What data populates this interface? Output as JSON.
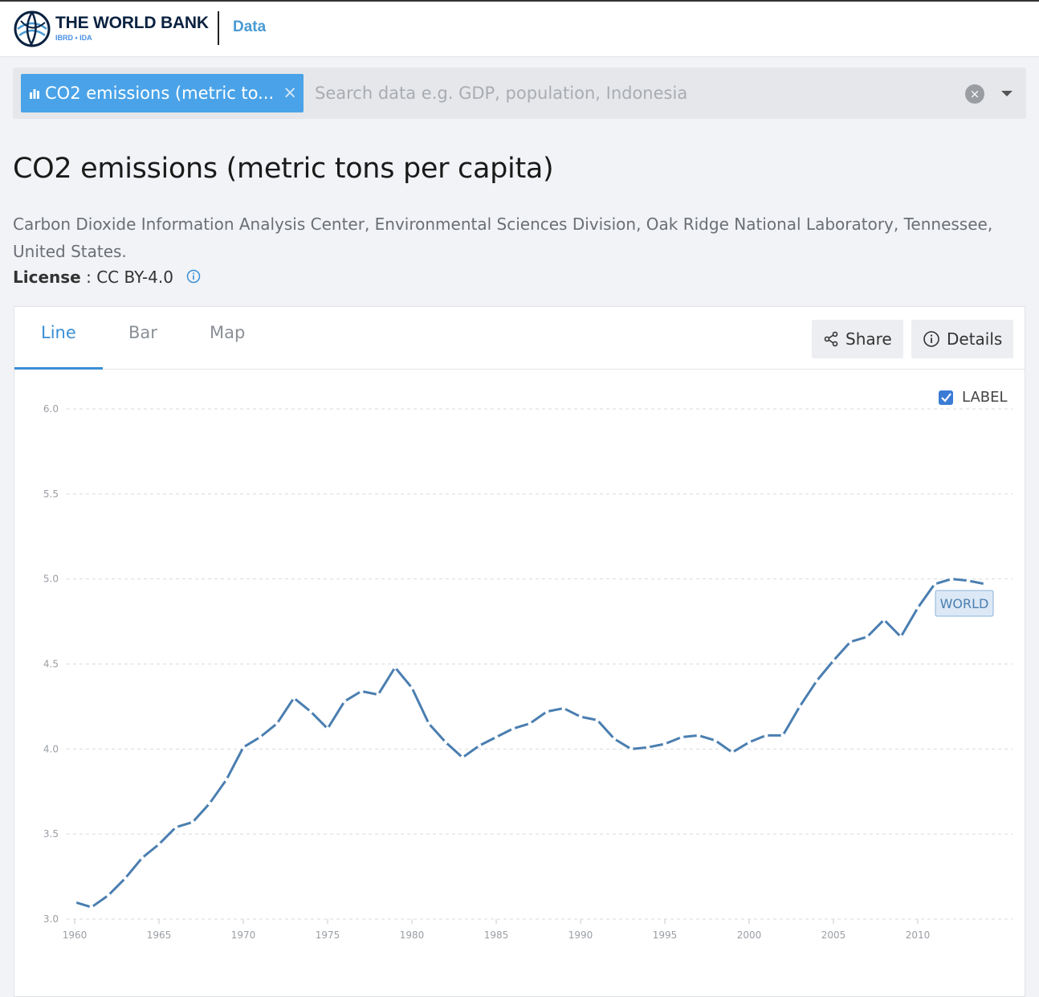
{
  "header": {
    "brand_name": "THE WORLD BANK",
    "brand_sub": "IBRD • IDA",
    "section_link": "Data"
  },
  "search": {
    "chip_label": "CO2 emissions (metric to...",
    "chip_close": "×",
    "placeholder": "Search data e.g. GDP, population, Indonesia",
    "value": "",
    "clear": "×"
  },
  "indicator": {
    "title": "CO2 emissions (metric tons per capita)",
    "source": "Carbon Dioxide Information Analysis Center, Environmental Sciences Division, Oak Ridge National Laboratory, Tennessee, United States.",
    "license_key": "License",
    "license_sep": " : ",
    "license_value": "CC BY-4.0"
  },
  "chart_tabs": [
    "Line",
    "Bar",
    "Map"
  ],
  "active_tab": "Line",
  "actions": {
    "share": "Share",
    "details": "Details"
  },
  "label_toggle": {
    "label": "LABEL",
    "checked": true
  },
  "colors": {
    "accent": "#3a8fd6",
    "series": "#4a7eb0",
    "chip": "#4aa3e8"
  },
  "icons": {
    "logo": "world-bank-globe-icon",
    "chip": "bar-chart-icon",
    "share": "share-icon",
    "details": "info-circle-icon"
  },
  "chart_data": {
    "type": "line",
    "title": "",
    "xlabel": "",
    "ylabel": "",
    "xlim": [
      1960,
      2014
    ],
    "ylim": [
      3.0,
      6.0
    ],
    "yticks": [
      "3.0",
      "3.5",
      "4.0",
      "4.5",
      "5.0",
      "5.5",
      "6.0"
    ],
    "xticks": [
      "1960",
      "1965",
      "1970",
      "1975",
      "1980",
      "1985",
      "1990",
      "1995",
      "2000",
      "2005",
      "2010"
    ],
    "grid": true,
    "series": [
      {
        "name": "WORLD",
        "x": [
          1960,
          1961,
          1962,
          1963,
          1964,
          1965,
          1966,
          1967,
          1968,
          1969,
          1970,
          1971,
          1972,
          1973,
          1974,
          1975,
          1976,
          1977,
          1978,
          1979,
          1980,
          1981,
          1982,
          1983,
          1984,
          1985,
          1986,
          1987,
          1988,
          1989,
          1990,
          1991,
          1992,
          1993,
          1994,
          1995,
          1996,
          1997,
          1998,
          1999,
          2000,
          2001,
          2002,
          2003,
          2004,
          2005,
          2006,
          2007,
          2008,
          2009,
          2010,
          2011,
          2012,
          2013,
          2014
        ],
        "values": [
          3.1,
          3.07,
          3.14,
          3.24,
          3.36,
          3.44,
          3.54,
          3.57,
          3.68,
          3.82,
          4.01,
          4.07,
          4.15,
          4.3,
          4.22,
          4.12,
          4.28,
          4.34,
          4.32,
          4.48,
          4.36,
          4.15,
          4.04,
          3.95,
          4.02,
          4.07,
          4.12,
          4.15,
          4.22,
          4.24,
          4.19,
          4.17,
          4.06,
          4.0,
          4.01,
          4.03,
          4.07,
          4.08,
          4.05,
          3.98,
          4.04,
          4.08,
          4.08,
          4.25,
          4.4,
          4.52,
          4.63,
          4.66,
          4.76,
          4.66,
          4.83,
          4.97,
          5.0,
          4.99,
          4.97
        ]
      }
    ]
  }
}
